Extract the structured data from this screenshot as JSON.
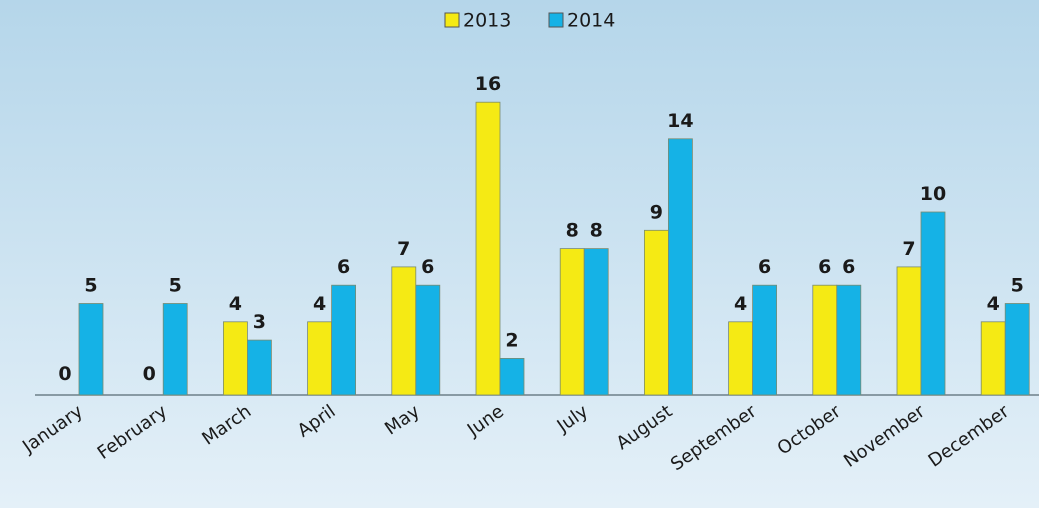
{
  "chart_data": {
    "type": "bar",
    "categories": [
      "January",
      "February",
      "March",
      "April",
      "May",
      "June",
      "July",
      "August",
      "September",
      "October",
      "November",
      "December"
    ],
    "series": [
      {
        "name": "2013",
        "color": "#f5ea14",
        "values": [
          0,
          0,
          4,
          4,
          7,
          16,
          8,
          9,
          4,
          6,
          7,
          4
        ]
      },
      {
        "name": "2014",
        "color": "#15b2e6",
        "values": [
          5,
          5,
          3,
          6,
          6,
          2,
          8,
          14,
          6,
          6,
          10,
          5
        ]
      }
    ],
    "legend": "top"
  }
}
